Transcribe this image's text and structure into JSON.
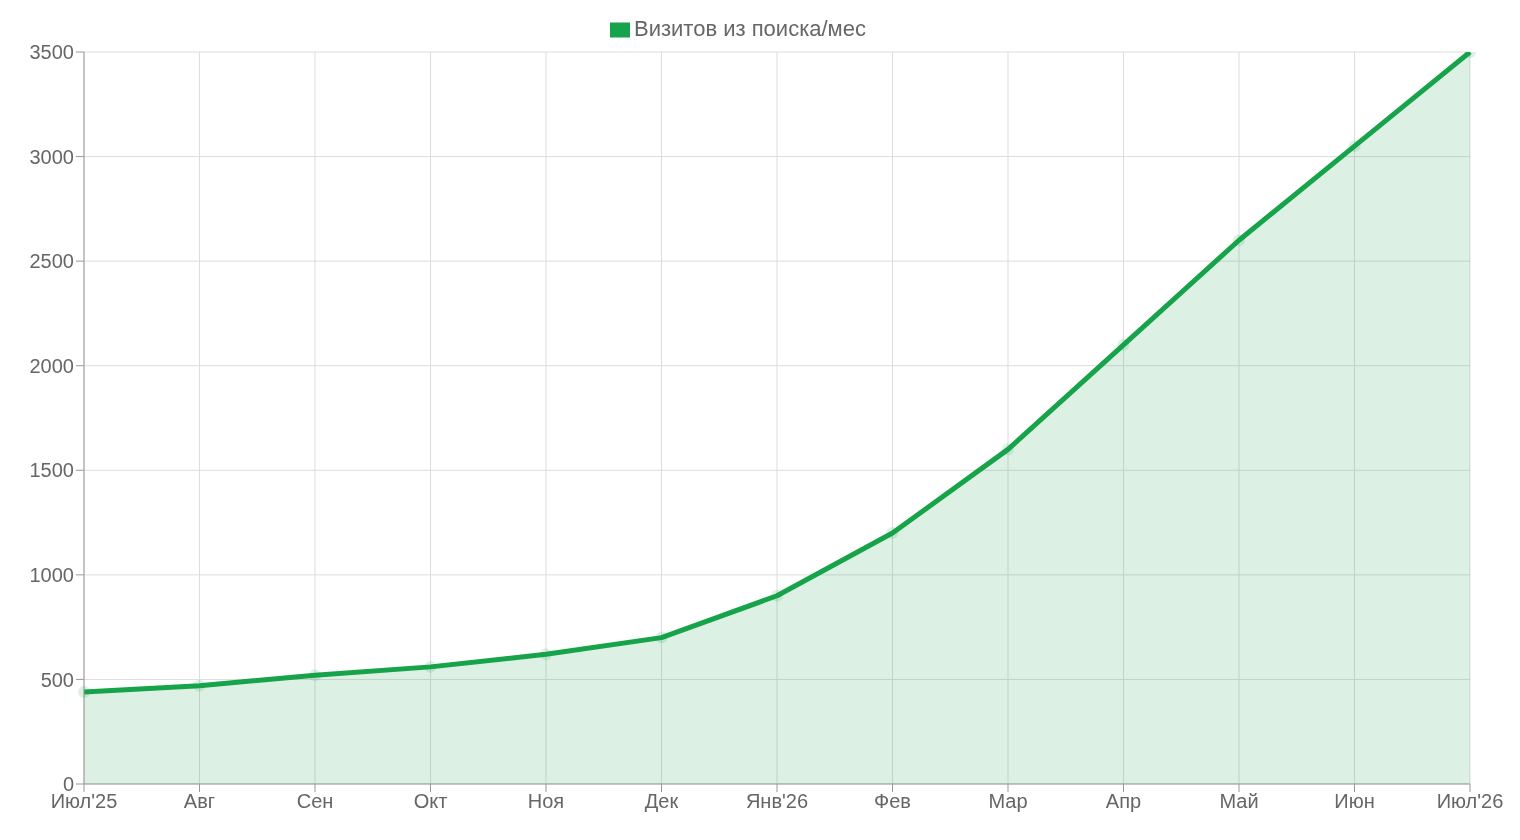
{
  "chart_data": {
    "type": "area",
    "categories": [
      "Июл'25",
      "Авг",
      "Сен",
      "Окт",
      "Ноя",
      "Дек",
      "Янв'26",
      "Фев",
      "Мар",
      "Апр",
      "Май",
      "Июн",
      "Июл'26"
    ],
    "series": [
      {
        "name": "Визитов из поиска/мес",
        "color": "#16a34a",
        "values": [
          440,
          470,
          520,
          560,
          620,
          700,
          900,
          1200,
          1600,
          2100,
          2600,
          3050,
          3500
        ]
      }
    ],
    "ylim": [
      0,
      3500
    ],
    "yticks": [
      0,
      500,
      1000,
      1500,
      2000,
      2500,
      3000,
      3500
    ],
    "grid": true,
    "legend": "top",
    "marker": "circle",
    "line_style": "solid"
  }
}
